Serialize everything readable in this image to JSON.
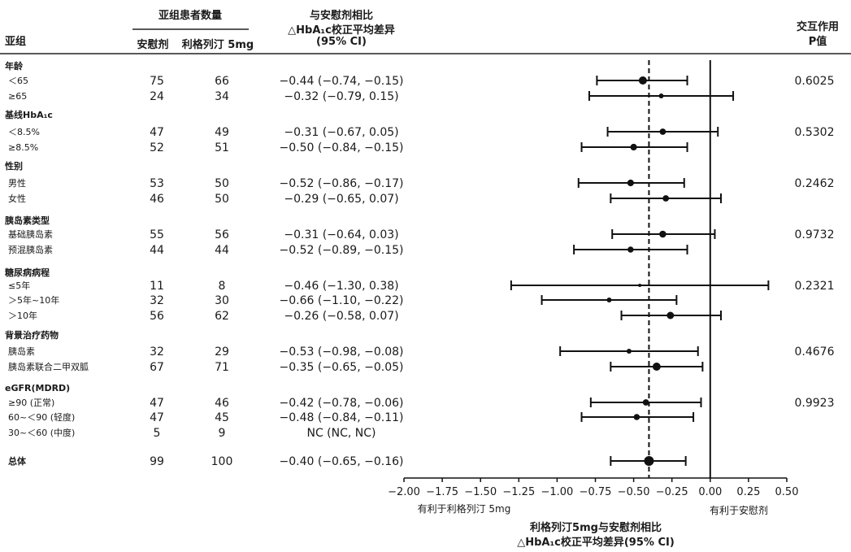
{
  "header": {
    "subgroup": "亚组",
    "patient_count": "亚组患者数量",
    "placebo": "安慰剂",
    "linagliptin": "利格列汀 5mg",
    "diff_line1": "与安慰剂相比",
    "diff_line2": "△HbA₁c校正平均差异",
    "diff_line3": "(95% CI)",
    "interaction_line1": "交互作用",
    "interaction_line2": "P值"
  },
  "chart_data": {
    "type": "forest",
    "reference_line": 0.0,
    "overall_dashed_line": -0.4,
    "xlim": [
      -2.0,
      0.5
    ],
    "x_ticks": [
      "−2.00",
      "−1.75",
      "−1.50",
      "−1.25",
      "−1.00",
      "−0.75",
      "−0.50",
      "−0.25",
      "0.00",
      "0.25",
      "0.50"
    ],
    "x_favors_left": "有利于利格列汀 5mg",
    "x_favors_right": "有利于安慰剂",
    "xlabel_line1": "利格列汀5mg与安慰剂相比",
    "xlabel_line2": "△HbA₁c校正平均差异(95% CI)",
    "groups": [
      {
        "label": "年龄",
        "p": "0.6025",
        "rows": [
          {
            "label": "＜65",
            "placebo_n": "75",
            "lina_n": "66",
            "ci_text": "−0.44 (−0.74, −0.15)",
            "est": -0.44,
            "lo": -0.74,
            "hi": -0.15
          },
          {
            "label": "≥65",
            "placebo_n": "24",
            "lina_n": "34",
            "ci_text": "−0.32 (−0.79, 0.15)",
            "est": -0.32,
            "lo": -0.79,
            "hi": 0.15
          }
        ]
      },
      {
        "label": "基线HbA₁c",
        "p": "0.5302",
        "rows": [
          {
            "label": "＜8.5%",
            "placebo_n": "47",
            "lina_n": "49",
            "ci_text": "−0.31 (−0.67, 0.05)",
            "est": -0.31,
            "lo": -0.67,
            "hi": 0.05
          },
          {
            "label": "≥8.5%",
            "placebo_n": "52",
            "lina_n": "51",
            "ci_text": "−0.50 (−0.84, −0.15)",
            "est": -0.5,
            "lo": -0.84,
            "hi": -0.15
          }
        ]
      },
      {
        "label": "性别",
        "p": "0.2462",
        "rows": [
          {
            "label": "男性",
            "placebo_n": "53",
            "lina_n": "50",
            "ci_text": "−0.52 (−0.86, −0.17)",
            "est": -0.52,
            "lo": -0.86,
            "hi": -0.17
          },
          {
            "label": "女性",
            "placebo_n": "46",
            "lina_n": "50",
            "ci_text": "−0.29 (−0.65, 0.07)",
            "est": -0.29,
            "lo": -0.65,
            "hi": 0.07
          }
        ]
      },
      {
        "label": "胰岛素类型",
        "p": "0.9732",
        "rows": [
          {
            "label": "基础胰岛素",
            "placebo_n": "55",
            "lina_n": "56",
            "ci_text": "−0.31 (−0.64, 0.03)",
            "est": -0.31,
            "lo": -0.64,
            "hi": 0.03
          },
          {
            "label": "预混胰岛素",
            "placebo_n": "44",
            "lina_n": "44",
            "ci_text": "−0.52 (−0.89, −0.15)",
            "est": -0.52,
            "lo": -0.89,
            "hi": -0.15
          }
        ]
      },
      {
        "label": "糖尿病病程",
        "p": "0.2321",
        "rows": [
          {
            "label": "≤5年",
            "placebo_n": "11",
            "lina_n": "8",
            "ci_text": "−0.46 (−1.30, 0.38)",
            "est": -0.46,
            "lo": -1.3,
            "hi": 0.38
          },
          {
            "label": "＞5年~10年",
            "placebo_n": "32",
            "lina_n": "30",
            "ci_text": "−0.66 (−1.10, −0.22)",
            "est": -0.66,
            "lo": -1.1,
            "hi": -0.22
          },
          {
            "label": "＞10年",
            "placebo_n": "56",
            "lina_n": "62",
            "ci_text": "−0.26 (−0.58, 0.07)",
            "est": -0.26,
            "lo": -0.58,
            "hi": 0.07
          }
        ]
      },
      {
        "label": "背景治疗药物",
        "p": "0.4676",
        "rows": [
          {
            "label": "胰岛素",
            "placebo_n": "32",
            "lina_n": "29",
            "ci_text": "−0.53 (−0.98, −0.08)",
            "est": -0.53,
            "lo": -0.98,
            "hi": -0.08
          },
          {
            "label": "胰岛素联合二甲双胍",
            "placebo_n": "67",
            "lina_n": "71",
            "ci_text": "−0.35 (−0.65, −0.05)",
            "est": -0.35,
            "lo": -0.65,
            "hi": -0.05
          }
        ]
      },
      {
        "label": "eGFR(MDRD)",
        "p": "0.9923",
        "rows": [
          {
            "label": "≥90 (正常)",
            "placebo_n": "47",
            "lina_n": "46",
            "ci_text": "−0.42 (−0.78, −0.06)",
            "est": -0.42,
            "lo": -0.78,
            "hi": -0.06
          },
          {
            "label": "60~＜90 (轻度)",
            "placebo_n": "47",
            "lina_n": "45",
            "ci_text": "−0.48 (−0.84, −0.11)",
            "est": -0.48,
            "lo": -0.84,
            "hi": -0.11
          },
          {
            "label": "30~＜60 (中度)",
            "placebo_n": "5",
            "lina_n": "9",
            "ci_text": "NC (NC, NC)",
            "est": null,
            "lo": null,
            "hi": null
          }
        ]
      }
    ],
    "overall": {
      "label": "总体",
      "placebo_n": "99",
      "lina_n": "100",
      "ci_text": "−0.40 (−0.65, −0.16)",
      "est": -0.4,
      "lo": -0.65,
      "hi": -0.16
    }
  }
}
